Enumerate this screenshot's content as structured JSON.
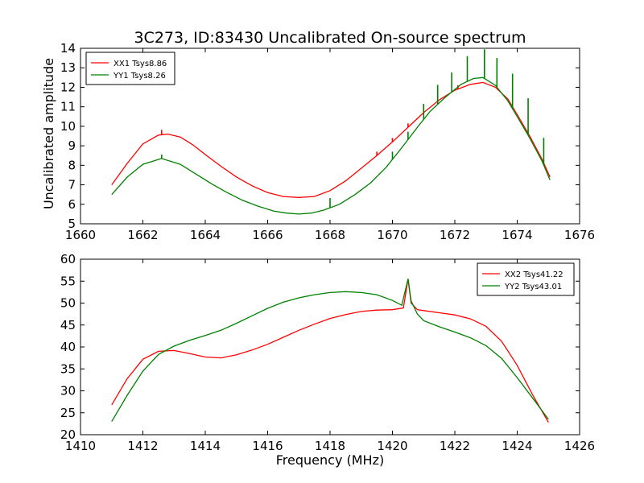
{
  "figure": {
    "title": "3C273, ID:83430 Uncalibrated On-source spectrum",
    "ylabel": "Uncalibrated amplitude",
    "xlabel": "Frequency (MHz)"
  },
  "colors": {
    "series1": "#ff0000",
    "series2": "#008000"
  },
  "chart_data": [
    {
      "type": "line",
      "title": "3C273, ID:83430 Uncalibrated On-source spectrum",
      "ylabel": "Uncalibrated amplitude",
      "xlabel": "",
      "xlim": [
        1660,
        1676
      ],
      "ylim": [
        5,
        14
      ],
      "xticks": [
        1660,
        1662,
        1664,
        1666,
        1668,
        1670,
        1672,
        1674,
        1676
      ],
      "yticks": [
        5,
        6,
        7,
        8,
        9,
        10,
        11,
        12,
        13,
        14
      ],
      "legend": "top-left",
      "grid": false,
      "series": [
        {
          "name": "XX1 Tsys8.86",
          "color": "#ff0000",
          "x": [
            1661.0,
            1661.5,
            1662.0,
            1662.5,
            1662.8,
            1663.2,
            1663.6,
            1664.0,
            1664.5,
            1665.0,
            1665.5,
            1666.0,
            1666.5,
            1667.0,
            1667.5,
            1668.0,
            1668.5,
            1669.0,
            1669.5,
            1670.0,
            1670.5,
            1671.0,
            1671.5,
            1672.0,
            1672.5,
            1672.9,
            1673.3,
            1673.7,
            1674.0,
            1674.4,
            1674.8,
            1675.05
          ],
          "y": [
            7.0,
            8.1,
            9.1,
            9.55,
            9.6,
            9.45,
            9.05,
            8.55,
            7.95,
            7.4,
            6.95,
            6.6,
            6.4,
            6.35,
            6.4,
            6.7,
            7.2,
            7.85,
            8.5,
            9.2,
            9.95,
            10.7,
            11.35,
            11.85,
            12.15,
            12.25,
            12.0,
            11.4,
            10.6,
            9.5,
            8.3,
            7.4
          ],
          "spikes": [
            [
              1662.6,
              0.25
            ],
            [
              1669.5,
              0.2
            ],
            [
              1670.0,
              0.2
            ],
            [
              1670.5,
              0.2
            ],
            [
              1671.0,
              0.2
            ],
            [
              1672.1,
              0.2
            ]
          ]
        },
        {
          "name": "YY1 Tsys8.26",
          "color": "#008000",
          "x": [
            1661.0,
            1661.5,
            1662.0,
            1662.6,
            1663.2,
            1663.7,
            1664.2,
            1664.7,
            1665.2,
            1665.7,
            1666.2,
            1666.6,
            1667.0,
            1667.4,
            1667.8,
            1668.3,
            1668.8,
            1669.3,
            1669.8,
            1670.3,
            1670.8,
            1671.2,
            1671.7,
            1672.2,
            1672.6,
            1672.9,
            1673.3,
            1673.7,
            1674.0,
            1674.4,
            1674.8,
            1675.05
          ],
          "y": [
            6.5,
            7.4,
            8.05,
            8.35,
            8.05,
            7.55,
            7.05,
            6.6,
            6.2,
            5.9,
            5.65,
            5.55,
            5.5,
            5.55,
            5.7,
            6.0,
            6.5,
            7.1,
            7.9,
            8.9,
            9.95,
            10.75,
            11.5,
            12.15,
            12.45,
            12.5,
            12.1,
            11.3,
            10.5,
            9.4,
            8.2,
            7.25
          ],
          "spikes": [
            [
              1662.6,
              0.2
            ],
            [
              1668.0,
              0.5
            ],
            [
              1670.0,
              0.4
            ],
            [
              1670.5,
              0.4
            ],
            [
              1671.0,
              0.8
            ],
            [
              1671.45,
              1.0
            ],
            [
              1671.9,
              1.0
            ],
            [
              1672.4,
              1.3
            ],
            [
              1672.95,
              1.5
            ],
            [
              1673.35,
              1.5
            ],
            [
              1673.85,
              1.8
            ],
            [
              1674.35,
              1.9
            ],
            [
              1674.85,
              1.4
            ]
          ]
        }
      ]
    },
    {
      "type": "line",
      "title": "",
      "xlabel": "Frequency (MHz)",
      "ylabel": "",
      "xlim": [
        1410,
        1426
      ],
      "ylim": [
        20,
        60
      ],
      "xticks": [
        1410,
        1412,
        1414,
        1416,
        1418,
        1420,
        1422,
        1424,
        1426
      ],
      "yticks": [
        20,
        25,
        30,
        35,
        40,
        45,
        50,
        55,
        60
      ],
      "legend": "top-right",
      "grid": false,
      "series": [
        {
          "name": "XX2 Tsys41.22",
          "color": "#ff0000",
          "x": [
            1411.0,
            1411.5,
            1412.0,
            1412.5,
            1413.0,
            1413.5,
            1414.0,
            1414.5,
            1415.0,
            1415.5,
            1416.0,
            1416.5,
            1417.0,
            1417.5,
            1418.0,
            1418.5,
            1419.0,
            1419.5,
            1420.0,
            1420.35,
            1420.5,
            1420.6,
            1420.8,
            1421.0,
            1421.5,
            1422.0,
            1422.5,
            1423.0,
            1423.5,
            1424.0,
            1424.5,
            1425.0
          ],
          "y": [
            26.8,
            32.8,
            37.2,
            39.0,
            39.2,
            38.5,
            37.7,
            37.5,
            38.2,
            39.3,
            40.6,
            42.2,
            43.8,
            45.2,
            46.5,
            47.4,
            48.1,
            48.4,
            48.5,
            48.9,
            55.5,
            50.0,
            48.5,
            48.3,
            47.8,
            47.3,
            46.4,
            44.7,
            41.3,
            35.8,
            29.0,
            22.8
          ],
          "spikes": []
        },
        {
          "name": "YY2 Tsys43.01",
          "color": "#008000",
          "x": [
            1411.0,
            1411.5,
            1412.0,
            1412.5,
            1413.0,
            1413.5,
            1414.0,
            1414.5,
            1415.0,
            1415.5,
            1416.0,
            1416.5,
            1417.0,
            1417.5,
            1418.0,
            1418.5,
            1419.0,
            1419.5,
            1420.0,
            1420.3,
            1420.5,
            1420.6,
            1420.8,
            1421.0,
            1421.5,
            1422.0,
            1422.5,
            1423.0,
            1423.5,
            1424.0,
            1424.5,
            1425.0
          ],
          "y": [
            23.0,
            29.0,
            34.5,
            38.3,
            40.2,
            41.5,
            42.6,
            43.8,
            45.4,
            47.1,
            48.8,
            50.2,
            51.2,
            51.9,
            52.4,
            52.6,
            52.4,
            51.9,
            50.6,
            49.5,
            55.5,
            50.5,
            47.5,
            46.0,
            44.6,
            43.4,
            42.1,
            40.3,
            37.4,
            33.0,
            28.3,
            23.5
          ],
          "spikes": []
        }
      ]
    }
  ]
}
